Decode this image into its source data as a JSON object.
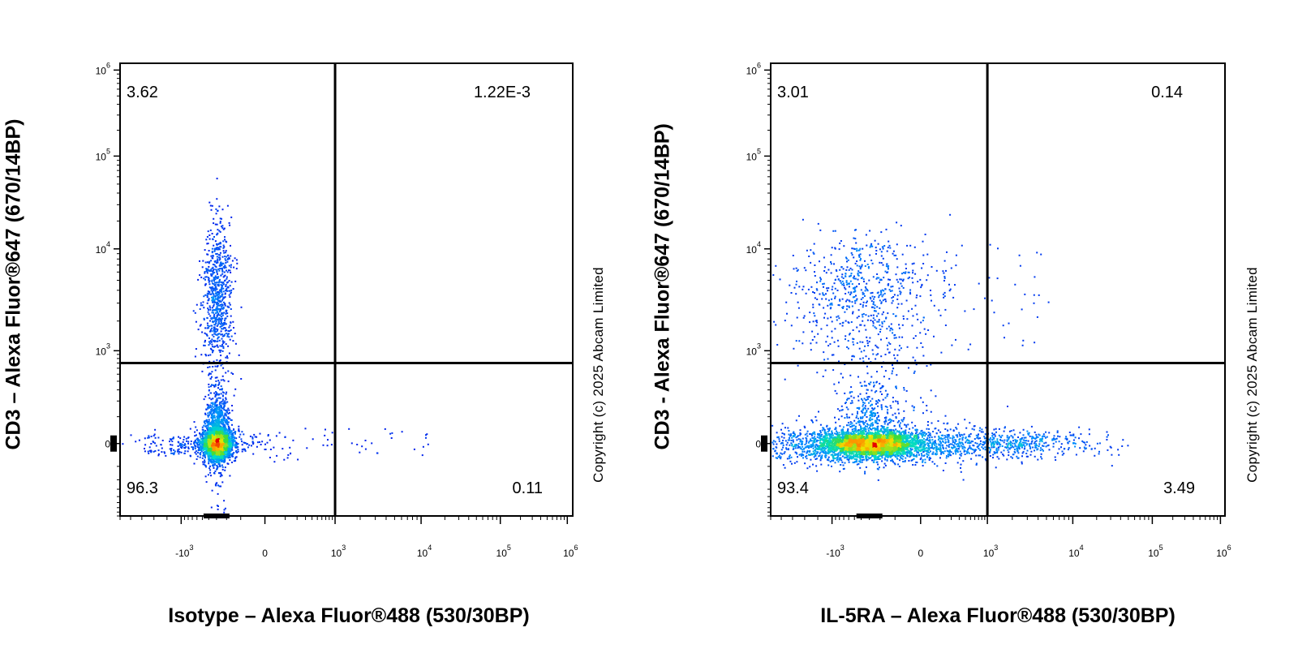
{
  "chart_data": [
    {
      "type": "scatter",
      "title": "",
      "xlabel": "Isotype – Alexa Fluor®488 (530/30BP)",
      "ylabel": "CD3 – Alexa Fluor®647 (670/14BP)",
      "copyright": "Copyright (c) 2025 Abcam Limited",
      "x_scale": "biexponential",
      "y_scale": "biexponential",
      "x_ticks": [
        {
          "base": "-10",
          "exp": "3"
        },
        {
          "base": "0",
          "exp": ""
        },
        {
          "base": "10",
          "exp": "3"
        },
        {
          "base": "10",
          "exp": "4"
        },
        {
          "base": "10",
          "exp": "5"
        },
        {
          "base": "10",
          "exp": "6"
        }
      ],
      "y_ticks": [
        {
          "base": "0",
          "exp": ""
        },
        {
          "base": "10",
          "exp": "3"
        },
        {
          "base": "10",
          "exp": "4"
        },
        {
          "base": "10",
          "exp": "5"
        },
        {
          "base": "10",
          "exp": "6"
        }
      ],
      "gate": {
        "x": 1000,
        "y": 700
      },
      "quadrants": {
        "upper_left": "3.62",
        "upper_right": "1.22E-3",
        "lower_left": "96.3",
        "lower_right": "0.11"
      },
      "populations": [
        {
          "name": "CD3- main",
          "x_center": -300,
          "y_center": 0,
          "spread": "tight"
        },
        {
          "name": "CD3+ T cells",
          "x_center": -300,
          "y_center": 4000,
          "spread": "vertical"
        }
      ]
    },
    {
      "type": "scatter",
      "title": "",
      "xlabel": "IL-5RA – Alexa Fluor®488 (530/30BP)",
      "ylabel": "CD3 - Alexa Fluor®647 (670/14BP)",
      "copyright": "Copyright (c) 2025 Abcam Limited",
      "x_scale": "biexponential",
      "y_scale": "biexponential",
      "x_ticks": [
        {
          "base": "-10",
          "exp": "3"
        },
        {
          "base": "0",
          "exp": ""
        },
        {
          "base": "10",
          "exp": "3"
        },
        {
          "base": "10",
          "exp": "4"
        },
        {
          "base": "10",
          "exp": "5"
        },
        {
          "base": "10",
          "exp": "6"
        }
      ],
      "y_ticks": [
        {
          "base": "0",
          "exp": ""
        },
        {
          "base": "10",
          "exp": "3"
        },
        {
          "base": "10",
          "exp": "4"
        },
        {
          "base": "10",
          "exp": "5"
        },
        {
          "base": "10",
          "exp": "6"
        }
      ],
      "gate": {
        "x": 1000,
        "y": 700
      },
      "quadrants": {
        "upper_left": "3.01",
        "upper_right": "0.14",
        "lower_left": "93.4",
        "lower_right": "3.49"
      },
      "populations": [
        {
          "name": "CD3- main",
          "x_center": -300,
          "y_center": 0,
          "spread": "horizontal"
        },
        {
          "name": "CD3+ T cells",
          "x_center": -300,
          "y_center": 4000,
          "spread": "diffuse"
        }
      ]
    }
  ]
}
